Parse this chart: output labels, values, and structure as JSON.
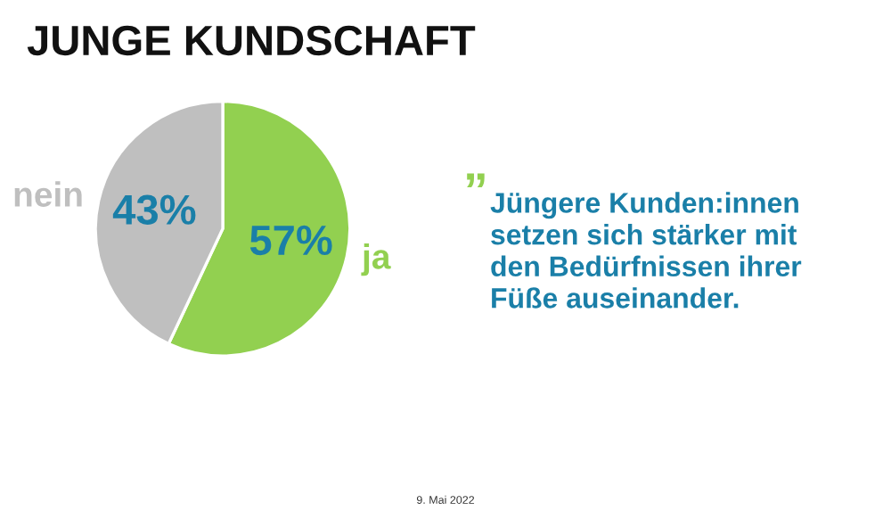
{
  "chart_data": {
    "type": "pie",
    "title": "JUNGE KUNDSCHAFT",
    "categories": [
      "ja",
      "nein"
    ],
    "values": [
      57,
      43
    ],
    "colors": [
      "#92d050",
      "#bfbfbf"
    ],
    "value_labels": [
      "57%",
      "43%"
    ],
    "annotations": [
      "”",
      "Jüngere Kunden:innen\nsetzen sich stärker mit\nden Bedürfnissen ihrer\nFüße auseinander.",
      "9. Mai 2022"
    ]
  }
}
